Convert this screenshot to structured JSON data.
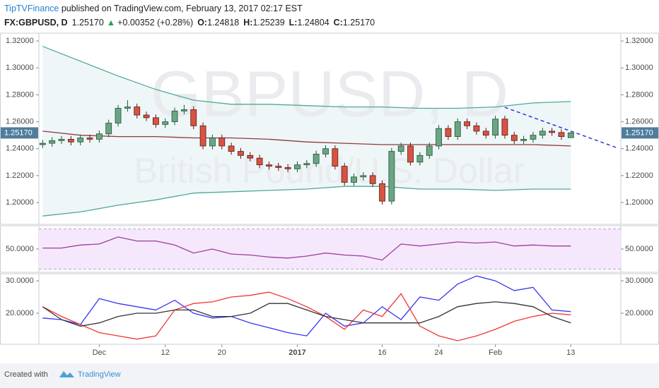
{
  "header": {
    "author": "TipTVFinance",
    "published": " published on TradingView.com, February 13, 2017 02:17 EST",
    "symbol": "FX:GBPUSD, D",
    "last": "1.25170",
    "arrow": "▲",
    "change": "+0.00352 (+0.28%)",
    "ohlc": [
      {
        "label": "O:",
        "value": "1.24818"
      },
      {
        "label": "H:",
        "value": "1.25239"
      },
      {
        "label": "L:",
        "value": "1.24804"
      },
      {
        "label": "C:",
        "value": "1.25170"
      }
    ]
  },
  "footer": {
    "text": "Created with",
    "brand": "TradingView"
  },
  "chart_data": [
    {
      "type": "candlestick",
      "watermark": [
        "GBPUSD, D",
        "British Pound/U.S. Dollar"
      ],
      "x": [
        0,
        1,
        2,
        3,
        4,
        5,
        6,
        7,
        8,
        9,
        10,
        11,
        12,
        13,
        14,
        15,
        16,
        17,
        18,
        19,
        20,
        21,
        22,
        23,
        24,
        25,
        26,
        27,
        28,
        29,
        30,
        31,
        32,
        33,
        34,
        35,
        36,
        37,
        38,
        39,
        40,
        41,
        42,
        43,
        44,
        45,
        46,
        47,
        48,
        49,
        50,
        51,
        52,
        53,
        54,
        55,
        56
      ],
      "open": [
        1.243,
        1.244,
        1.246,
        1.247,
        1.245,
        1.248,
        1.247,
        1.251,
        1.259,
        1.27,
        1.271,
        1.265,
        1.263,
        1.258,
        1.26,
        1.268,
        1.269,
        1.257,
        1.242,
        1.248,
        1.242,
        1.238,
        1.235,
        1.233,
        1.228,
        1.227,
        1.226,
        1.225,
        1.228,
        1.229,
        1.236,
        1.24,
        1.227,
        1.215,
        1.219,
        1.22,
        1.214,
        1.201,
        1.238,
        1.242,
        1.23,
        1.235,
        1.242,
        1.255,
        1.249,
        1.26,
        1.257,
        1.253,
        1.25,
        1.262,
        1.25,
        1.246,
        1.247,
        1.25,
        1.253,
        1.252,
        1.24818
      ],
      "high": [
        1.2465,
        1.2485,
        1.2495,
        1.2495,
        1.2505,
        1.2505,
        1.2535,
        1.2615,
        1.2725,
        1.276,
        1.2735,
        1.2675,
        1.2655,
        1.2625,
        1.2705,
        1.2725,
        1.2715,
        1.2595,
        1.2505,
        1.2505,
        1.2445,
        1.2405,
        1.2375,
        1.2355,
        1.2305,
        1.2295,
        1.2285,
        1.2305,
        1.2315,
        1.2385,
        1.2425,
        1.2425,
        1.2295,
        1.2215,
        1.2225,
        1.2225,
        1.2165,
        1.2405,
        1.2445,
        1.2445,
        1.2375,
        1.2445,
        1.2575,
        1.2575,
        1.2625,
        1.2625,
        1.2595,
        1.2555,
        1.2645,
        1.2645,
        1.2525,
        1.2495,
        1.2525,
        1.2555,
        1.2555,
        1.2545,
        1.25239
      ],
      "low": [
        1.2405,
        1.2415,
        1.2435,
        1.2425,
        1.2425,
        1.2445,
        1.2445,
        1.2485,
        1.2565,
        1.2675,
        1.2625,
        1.2605,
        1.2555,
        1.2555,
        1.2575,
        1.2655,
        1.2545,
        1.2395,
        1.2395,
        1.2395,
        1.2355,
        1.2325,
        1.2305,
        1.2255,
        1.2245,
        1.2235,
        1.2225,
        1.2225,
        1.2255,
        1.2265,
        1.2335,
        1.2245,
        1.2125,
        1.2125,
        1.2165,
        1.2115,
        1.1985,
        1.1985,
        1.2355,
        1.2275,
        1.2275,
        1.2325,
        1.2395,
        1.2465,
        1.2465,
        1.2545,
        1.2505,
        1.2475,
        1.2475,
        1.2475,
        1.2435,
        1.2435,
        1.2445,
        1.2475,
        1.2495,
        1.2465,
        1.24804
      ],
      "close": [
        1.244,
        1.246,
        1.247,
        1.245,
        1.248,
        1.247,
        1.251,
        1.259,
        1.27,
        1.271,
        1.265,
        1.263,
        1.258,
        1.26,
        1.268,
        1.269,
        1.257,
        1.242,
        1.248,
        1.242,
        1.238,
        1.235,
        1.233,
        1.228,
        1.227,
        1.226,
        1.225,
        1.228,
        1.229,
        1.236,
        1.24,
        1.227,
        1.215,
        1.219,
        1.22,
        1.214,
        1.201,
        1.238,
        1.242,
        1.23,
        1.235,
        1.242,
        1.255,
        1.249,
        1.26,
        1.257,
        1.253,
        1.25,
        1.262,
        1.25,
        1.246,
        1.247,
        1.25,
        1.253,
        1.252,
        1.249,
        1.2517
      ],
      "up_color": "#6ba583",
      "down_color": "#d75442",
      "band_fill": "#eef6f8",
      "series": [
        {
          "color": "#4fa89a",
          "x": [
            0,
            4,
            8,
            12,
            16,
            20,
            24,
            28,
            32,
            36,
            40,
            44,
            48,
            52,
            56
          ],
          "values": [
            1.316,
            1.305,
            1.294,
            1.284,
            1.276,
            1.273,
            1.273,
            1.272,
            1.271,
            1.271,
            1.27,
            1.27,
            1.271,
            1.274,
            1.275
          ]
        },
        {
          "color": "#8e3b3b",
          "x": [
            0,
            4,
            8,
            12,
            16,
            20,
            24,
            28,
            32,
            36,
            40,
            44,
            48,
            52,
            56
          ],
          "values": [
            1.253,
            1.25,
            1.249,
            1.249,
            1.248,
            1.248,
            1.247,
            1.245,
            1.244,
            1.243,
            1.243,
            1.243,
            1.243,
            1.243,
            1.242
          ]
        },
        {
          "color": "#4fa89a",
          "x": [
            0,
            4,
            8,
            12,
            16,
            20,
            24,
            28,
            32,
            36,
            40,
            44,
            48,
            52,
            56
          ],
          "values": [
            1.19,
            1.193,
            1.198,
            1.202,
            1.207,
            1.208,
            1.209,
            1.21,
            1.212,
            1.212,
            1.21,
            1.21,
            1.209,
            1.21,
            1.21
          ]
        }
      ],
      "trendline": {
        "color": "#2b37d6",
        "x": [
          49,
          61
        ],
        "values": [
          1.2707,
          1.2404
        ]
      },
      "xlim": [
        -0.4,
        61.3
      ],
      "ylim": [
        1.1838,
        1.3258
      ],
      "yticks": [
        {
          "value": 1.2,
          "label": "1.20000"
        },
        {
          "value": 1.22,
          "label": "1.22000"
        },
        {
          "value": 1.24,
          "label": "1.24000"
        },
        {
          "value": 1.26,
          "label": "1.26000"
        },
        {
          "value": 1.28,
          "label": "1.28000"
        },
        {
          "value": 1.3,
          "label": "1.30000"
        },
        {
          "value": 1.32,
          "label": "1.32000"
        }
      ],
      "xticks": [
        {
          "value": 6,
          "label": "Dec"
        },
        {
          "value": 13,
          "label": "12"
        },
        {
          "value": 19,
          "label": "20"
        },
        {
          "value": 27,
          "label": "2017"
        },
        {
          "value": 36,
          "label": "16"
        },
        {
          "value": 42,
          "label": "24"
        },
        {
          "value": 48,
          "label": "Feb"
        },
        {
          "value": 56,
          "label": "13"
        }
      ]
    },
    {
      "type": "line",
      "xlim": [
        -0.4,
        61.3
      ],
      "ylim": [
        26.8,
        73.2
      ],
      "bands": [
        30,
        70
      ],
      "band_fill": "#f5e8fc",
      "yticks": [
        {
          "value": 50,
          "label": "50.0000"
        }
      ],
      "series": [
        {
          "color": "#9c3d9c",
          "x": [
            0,
            2,
            4,
            6,
            8,
            10,
            12,
            14,
            16,
            18,
            20,
            22,
            24,
            26,
            28,
            30,
            32,
            34,
            36,
            38,
            40,
            42,
            44,
            46,
            48,
            50,
            52,
            54,
            56
          ],
          "values": [
            51,
            51,
            54,
            55,
            62,
            58,
            58,
            54,
            46,
            50,
            45,
            44,
            42,
            41,
            43,
            46,
            44,
            43,
            39,
            55,
            53,
            55,
            57,
            56,
            57,
            53,
            54,
            53,
            53
          ]
        }
      ]
    },
    {
      "type": "line",
      "xlim": [
        -0.4,
        61.3
      ],
      "ylim": [
        10.4,
        32.2
      ],
      "yticks": [
        {
          "value": 20,
          "label": "20.0000"
        },
        {
          "value": 30,
          "label": "30.0000"
        }
      ],
      "series": [
        {
          "color": "#3535f0",
          "x": [
            0,
            2,
            4,
            6,
            8,
            10,
            12,
            14,
            16,
            18,
            20,
            22,
            24,
            26,
            28,
            30,
            32,
            34,
            36,
            38,
            40,
            42,
            44,
            46,
            48,
            50,
            52,
            54,
            56
          ],
          "values": [
            18.5,
            18,
            16.5,
            24.5,
            23,
            22,
            21,
            24,
            20,
            18.5,
            19,
            17,
            15.5,
            14,
            13,
            20,
            16,
            17,
            22,
            18,
            25,
            24,
            29,
            31.5,
            30,
            27,
            28,
            21,
            20.5
          ]
        },
        {
          "color": "#f03535",
          "x": [
            0,
            2,
            4,
            6,
            8,
            10,
            12,
            14,
            16,
            18,
            20,
            22,
            24,
            26,
            28,
            30,
            32,
            34,
            36,
            38,
            40,
            42,
            44,
            46,
            48,
            50,
            52,
            54,
            56
          ],
          "values": [
            22,
            19,
            16.5,
            14,
            13,
            12,
            13,
            21,
            23,
            23.5,
            25,
            25.5,
            26.5,
            24.5,
            22,
            19,
            15,
            21,
            19,
            26,
            16,
            13,
            11.5,
            13,
            15,
            17.5,
            19,
            20,
            19.5
          ]
        },
        {
          "color": "#333333",
          "x": [
            0,
            2,
            4,
            6,
            8,
            10,
            12,
            14,
            16,
            18,
            20,
            22,
            24,
            26,
            28,
            30,
            32,
            34,
            36,
            38,
            40,
            42,
            44,
            46,
            48,
            50,
            52,
            54,
            56
          ],
          "values": [
            22,
            18,
            16,
            17,
            19,
            20,
            20,
            21,
            21,
            19,
            19,
            20,
            23,
            23,
            21,
            19,
            18,
            17,
            17,
            17,
            17,
            19,
            22,
            23,
            23.5,
            23,
            22,
            19,
            17
          ]
        }
      ]
    }
  ]
}
